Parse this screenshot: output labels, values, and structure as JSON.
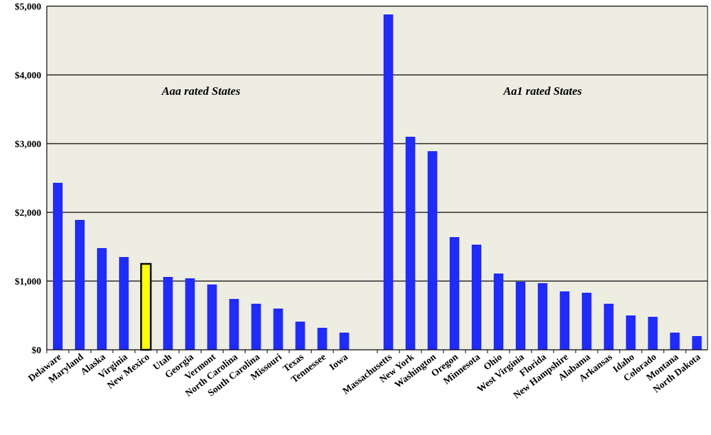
{
  "chart_data": {
    "type": "bar",
    "ylim": [
      0,
      5000
    ],
    "yticks": [
      {
        "value": 0,
        "label": "$0"
      },
      {
        "value": 1000,
        "label": "$1,000"
      },
      {
        "value": 2000,
        "label": "$2,000"
      },
      {
        "value": 3000,
        "label": "$3,000"
      },
      {
        "value": 4000,
        "label": "$4,000"
      },
      {
        "value": 5000,
        "label": "$5,000"
      }
    ],
    "grid": true,
    "colors": {
      "bar": "#1f2bff",
      "highlight": "#ffff00",
      "highlight_border": "#000000",
      "plot_bg": "#eeede2"
    },
    "groups": [
      {
        "label": "Aaa rated States",
        "bars": [
          {
            "category": "Delaware",
            "value": 2430
          },
          {
            "category": "Maryland",
            "value": 1890
          },
          {
            "category": "Alaska",
            "value": 1480
          },
          {
            "category": "Virginia",
            "value": 1350
          },
          {
            "category": "New Mexico",
            "value": 1250,
            "highlight": true
          },
          {
            "category": "Utah",
            "value": 1060
          },
          {
            "category": "Georgia",
            "value": 1040
          },
          {
            "category": "Vermont",
            "value": 950
          },
          {
            "category": "North Carolina",
            "value": 740
          },
          {
            "category": "South Carolina",
            "value": 670
          },
          {
            "category": "Missouri",
            "value": 600
          },
          {
            "category": "Texas",
            "value": 410
          },
          {
            "category": "Tennessee",
            "value": 320
          },
          {
            "category": "Iowa",
            "value": 250
          }
        ]
      },
      {
        "label": "Aa1 rated States",
        "bars": [
          {
            "category": "Massachusetts",
            "value": 4880
          },
          {
            "category": "New York",
            "value": 3100
          },
          {
            "category": "Washington",
            "value": 2890
          },
          {
            "category": "Oregon",
            "value": 1640
          },
          {
            "category": "Minnesota",
            "value": 1530
          },
          {
            "category": "Ohio",
            "value": 1110
          },
          {
            "category": "West Virginia",
            "value": 990
          },
          {
            "category": "Florida",
            "value": 970
          },
          {
            "category": "New Hampshire",
            "value": 850
          },
          {
            "category": "Alabama",
            "value": 830
          },
          {
            "category": "Arkansas",
            "value": 670
          },
          {
            "category": "Idaho",
            "value": 500
          },
          {
            "category": "Colorado",
            "value": 480
          },
          {
            "category": "Montana",
            "value": 250
          },
          {
            "category": "North Dakota",
            "value": 200
          }
        ]
      }
    ]
  }
}
